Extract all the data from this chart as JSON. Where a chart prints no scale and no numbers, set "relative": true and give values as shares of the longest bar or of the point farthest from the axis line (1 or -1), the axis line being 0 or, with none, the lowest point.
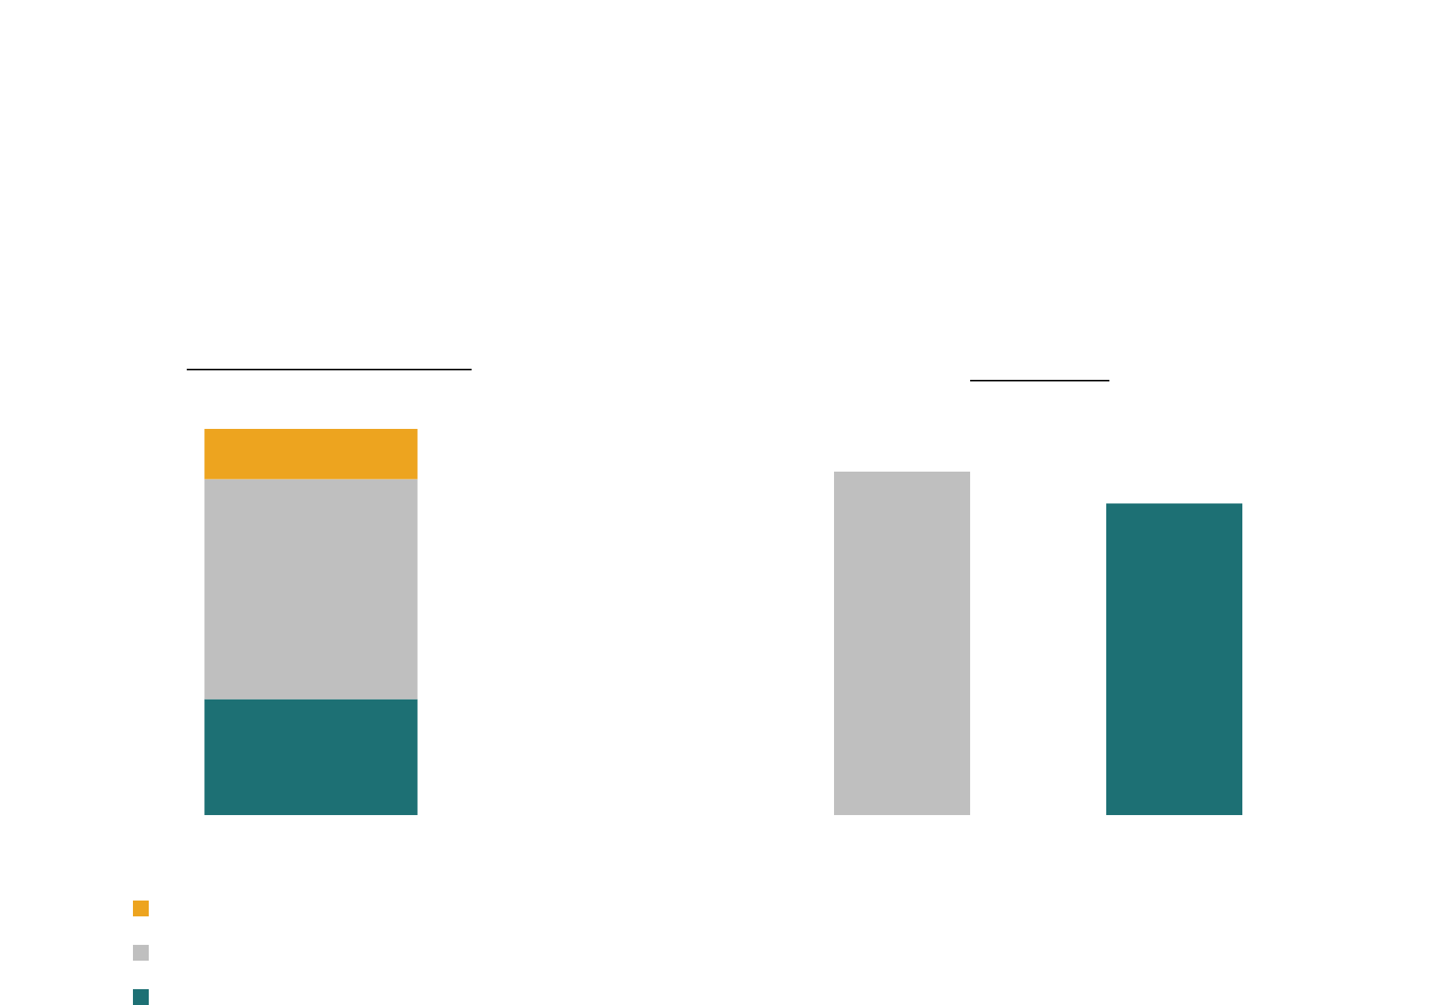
{
  "chart_data": [
    {
      "type": "bar",
      "relative": true,
      "stacked": true,
      "categories": [
        null
      ],
      "series": [
        {
          "color": "#1d7074",
          "values": [
            0.3
          ]
        },
        {
          "color": "#bfbfbf",
          "values": [
            0.57
          ]
        },
        {
          "color": "#eda41f",
          "values": [
            0.13
          ]
        }
      ]
    },
    {
      "type": "bar",
      "relative": true,
      "categories": [
        null,
        null
      ],
      "series": [
        {
          "colors": [
            "#bfbfbf",
            "#1d7074"
          ],
          "values": [
            1,
            0.907
          ]
        }
      ]
    }
  ]
}
